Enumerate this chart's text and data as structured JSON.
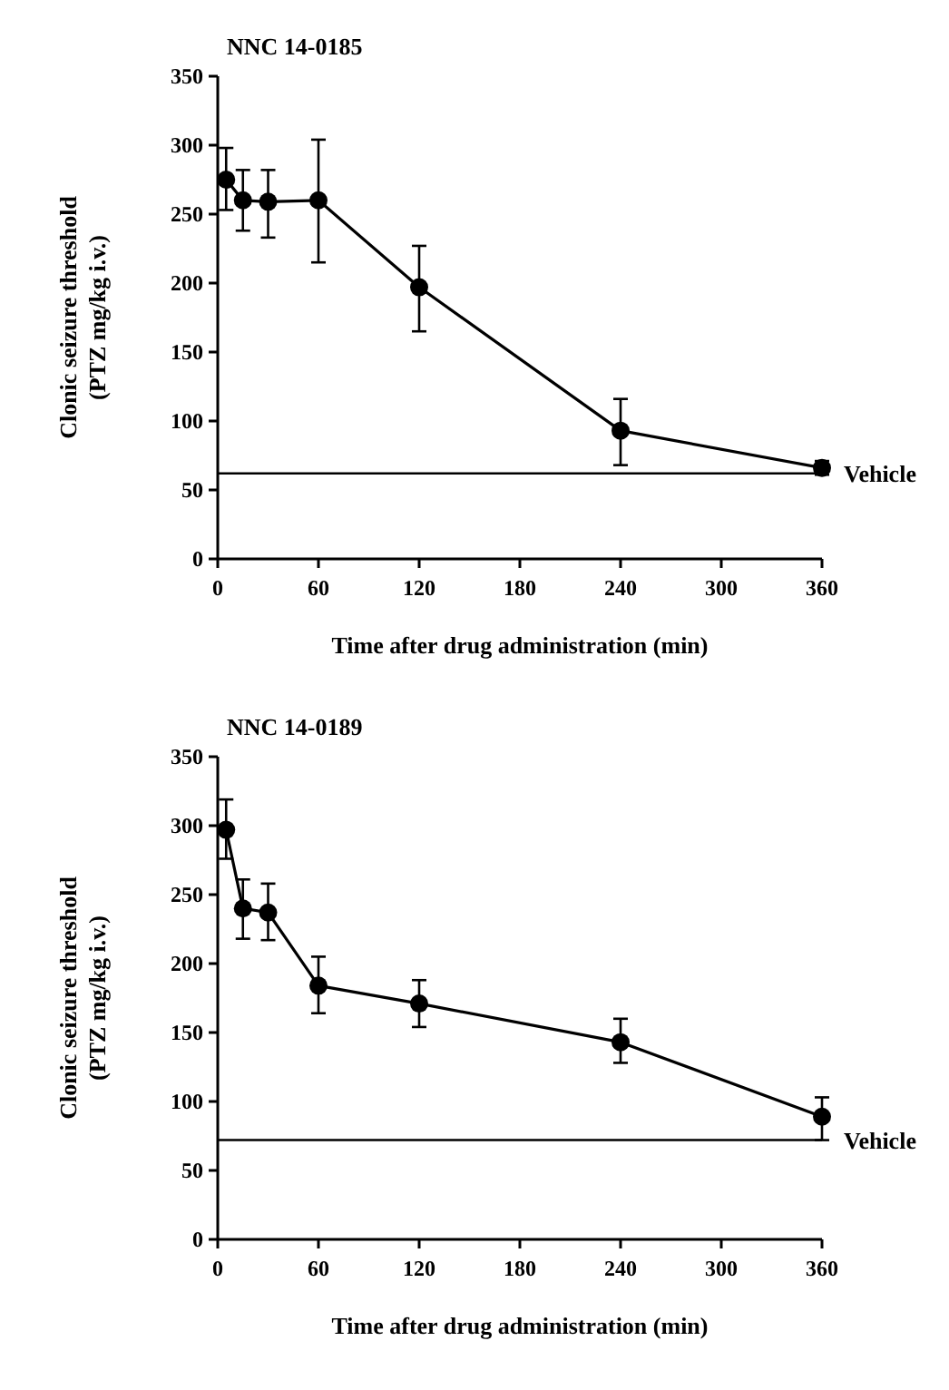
{
  "chart_data": [
    {
      "type": "line",
      "title": "NNC 14-0185",
      "xlabel": "Time after drug administration (min)",
      "ylabel": "Clonic seizure threshold\n(PTZ mg/kg i.v.)",
      "x": [
        5,
        15,
        30,
        60,
        120,
        240,
        360
      ],
      "series": [
        {
          "color": "#000000",
          "values": [
            275,
            260,
            259,
            260,
            197,
            93,
            66
          ],
          "errors": [
            [
              253,
              298
            ],
            [
              238,
              282
            ],
            [
              233,
              282
            ],
            [
              215,
              304
            ],
            [
              165,
              227
            ],
            [
              68,
              116
            ],
            [
              61,
              71
            ]
          ]
        }
      ],
      "xlim": [
        0,
        360
      ],
      "xticks": [
        0,
        60,
        120,
        180,
        240,
        300,
        360
      ],
      "ylim": [
        0,
        350
      ],
      "yticks": [
        0,
        50,
        100,
        150,
        200,
        250,
        300,
        350
      ],
      "ref_lines": [
        {
          "axis": "y",
          "value": 62,
          "label": "Vehicle",
          "color": "#000000"
        }
      ],
      "marker": "circle",
      "line_style": "solid",
      "grid": false
    },
    {
      "type": "line",
      "title": "NNC 14-0189",
      "xlabel": "Time after drug administration (min)",
      "ylabel": "Clonic seizure threshold\n(PTZ mg/kg i.v.)",
      "x": [
        5,
        15,
        30,
        60,
        120,
        240,
        360
      ],
      "series": [
        {
          "color": "#000000",
          "values": [
            297,
            240,
            237,
            184,
            171,
            143,
            89
          ],
          "errors": [
            [
              276,
              319
            ],
            [
              218,
              261
            ],
            [
              217,
              258
            ],
            [
              164,
              205
            ],
            [
              154,
              188
            ],
            [
              128,
              160
            ],
            [
              72,
              103
            ]
          ]
        }
      ],
      "xlim": [
        0,
        360
      ],
      "xticks": [
        0,
        60,
        120,
        180,
        240,
        300,
        360
      ],
      "ylim": [
        0,
        350
      ],
      "yticks": [
        0,
        50,
        100,
        150,
        200,
        250,
        300,
        350
      ],
      "ref_lines": [
        {
          "axis": "y",
          "value": 72,
          "label": "Vehicle",
          "color": "#000000"
        }
      ],
      "marker": "circle",
      "line_style": "solid",
      "grid": false
    }
  ]
}
